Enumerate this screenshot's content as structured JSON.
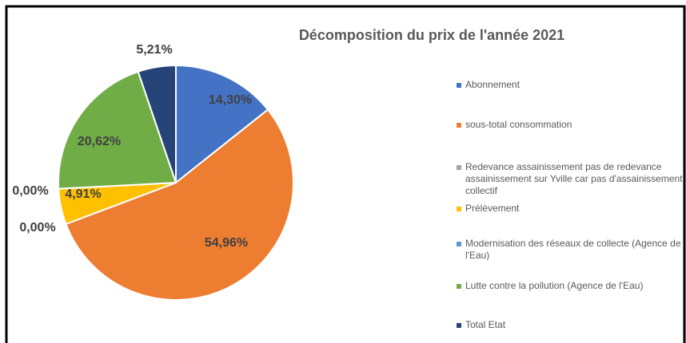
{
  "chart_data": {
    "type": "pie",
    "title": "Décomposition du prix de l'année 2021",
    "categories": [
      "Abonnement",
      "sous-total consommation",
      "Redevance assainissement pas de redevance assainissement sur Yville car pas d'assainissement collectif",
      "Prélèvement",
      "Modernisation des réseaux de collecte (Agence de l'Eau)",
      "Lutte contre la pollution (Agence de l'Eau)",
      "Total Etat"
    ],
    "values": [
      14.3,
      54.96,
      0.0,
      4.91,
      0.0,
      20.62,
      5.21
    ],
    "value_labels": [
      "14,30%",
      "54,96%",
      "0,00%",
      "4,91%",
      "0,00%",
      "20,62%",
      "5,21%"
    ],
    "colors": [
      "#4472c4",
      "#ed7d31",
      "#a5a5a5",
      "#ffc000",
      "#5b9bd5",
      "#70ad47",
      "#264478"
    ],
    "legend": "right"
  }
}
